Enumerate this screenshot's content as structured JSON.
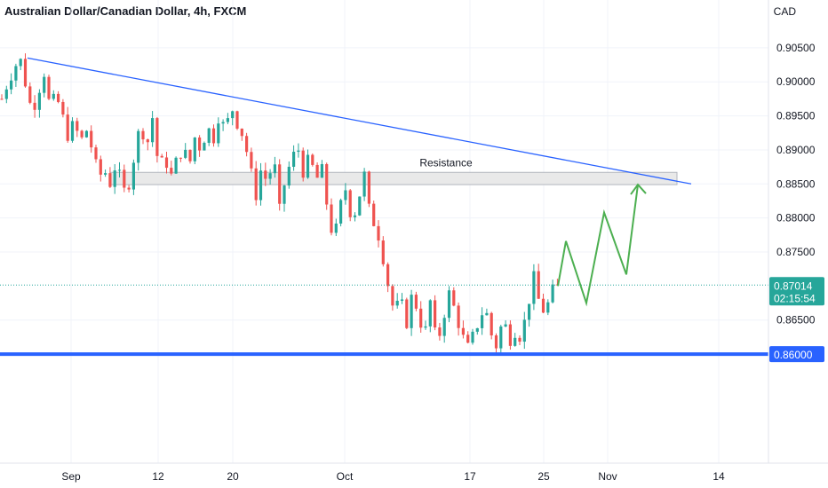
{
  "header": {
    "title": "Australian Dollar/Canadian Dollar, 4h, FXCM",
    "currency": "CAD"
  },
  "colors": {
    "up": "#26a69a",
    "down": "#ef5350",
    "trendline": "#2962ff",
    "support": "#2962ff",
    "projection": "#4caf50",
    "price_tag": "#26a69a",
    "support_tag": "#2962ff",
    "zone_fill": "#e9e9e9"
  },
  "price_tag": {
    "price": "0.87014",
    "countdown": "02:15:54"
  },
  "support_tag": {
    "price": "0.86000"
  },
  "chart_data": {
    "type": "candlestick",
    "title": "Australian Dollar/Canadian Dollar, 4h, FXCM",
    "y_unit": "CAD",
    "ylim": [
      0.8445,
      0.9115
    ],
    "y_ticks": [
      "0.90500",
      "0.90000",
      "0.89500",
      "0.89000",
      "0.88500",
      "0.88000",
      "0.87500",
      "0.87014",
      "0.86500",
      "0.86000"
    ],
    "x_ticks": [
      "Sep",
      "12",
      "20",
      "Oct",
      "17",
      "25",
      "Nov",
      "14"
    ],
    "current_price": 0.87014,
    "support_level": 0.86,
    "resistance_zone": {
      "label": "Resistance",
      "low": 0.8849,
      "high": 0.8867
    },
    "trendline": {
      "start": 0.9035,
      "end": 0.885
    },
    "projection": [
      0.87,
      0.8766,
      0.8675,
      0.8808,
      0.8717,
      0.8849
    ],
    "price_path": [
      0.8975,
      0.9,
      0.902,
      0.9035,
      0.8995,
      0.8955,
      0.8985,
      0.9015,
      0.896,
      0.898,
      0.895,
      0.892,
      0.894,
      0.891,
      0.893,
      0.89,
      0.886,
      0.887,
      0.885,
      0.8885,
      0.8835,
      0.885,
      0.8895,
      0.894,
      0.8905,
      0.895,
      0.887,
      0.889,
      0.886,
      0.8885,
      0.8905,
      0.8875,
      0.892,
      0.89,
      0.8935,
      0.8915,
      0.8955,
      0.8925,
      0.8965,
      0.894,
      0.892,
      0.888,
      0.883,
      0.8875,
      0.885,
      0.889,
      0.881,
      0.886,
      0.8885,
      0.8905,
      0.8865,
      0.889,
      0.8855,
      0.887,
      0.881,
      0.8765,
      0.8815,
      0.8845,
      0.8795,
      0.8825,
      0.8865,
      0.88,
      0.879,
      0.875,
      0.87,
      0.866,
      0.868,
      0.8645,
      0.869,
      0.866,
      0.8625,
      0.868,
      0.861,
      0.865,
      0.869,
      0.8665,
      0.8635,
      0.8605,
      0.8625,
      0.865,
      0.867,
      0.863,
      0.861,
      0.8655,
      0.862,
      0.8635,
      0.8625,
      0.8665,
      0.8715,
      0.8675,
      0.866,
      0.869,
      0.8701
    ]
  }
}
